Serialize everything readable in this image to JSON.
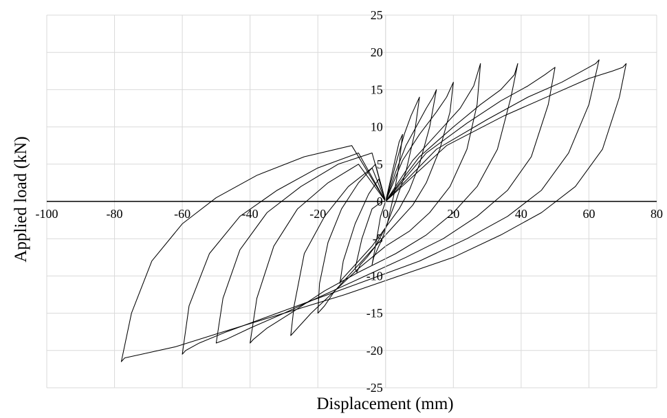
{
  "chart_data": {
    "type": "line",
    "title": "",
    "xlabel": "Displacement (mm)",
    "ylabel": "Applied load (kN)",
    "xlim": [
      -100,
      80
    ],
    "ylim": [
      -25,
      25
    ],
    "x_ticks": [
      -100,
      -80,
      -60,
      -40,
      -20,
      0,
      20,
      40,
      60,
      80
    ],
    "y_ticks": [
      -25,
      -20,
      -15,
      -10,
      -5,
      0,
      5,
      10,
      15,
      20,
      25
    ],
    "x_tick_labels": [
      "-100",
      "-80",
      "-60",
      "-40",
      "-20",
      "0",
      "20",
      "40",
      "60",
      "80"
    ],
    "y_tick_labels": [
      "-25",
      "-20",
      "-15",
      "-10",
      "-5",
      "0",
      "5",
      "10",
      "15",
      "20",
      "25"
    ],
    "grid": true,
    "line_color": "#000000",
    "grid_color": "#d9d9d9",
    "series": [
      {
        "x": [
          0,
          1.5,
          3,
          4,
          5,
          4,
          2.5,
          0.5,
          -1,
          -2.5,
          -3.5,
          -4,
          -3,
          -1.5,
          0
        ],
        "y": [
          0,
          3,
          6,
          8,
          9,
          5,
          1,
          -3,
          -5,
          -6.5,
          -7.5,
          -8.5,
          -6,
          -2,
          0
        ]
      },
      {
        "x": [
          0,
          3,
          5.5,
          7.5,
          9,
          10,
          8.5,
          6,
          3,
          0,
          -3,
          -5.5,
          -7.5,
          -8.5,
          -9,
          -7,
          -4,
          -1,
          0
        ],
        "y": [
          0,
          5,
          9,
          11.5,
          13,
          14,
          9,
          4,
          0,
          -3.5,
          -6,
          -7.5,
          -8.5,
          -9.5,
          -9,
          -5,
          -1,
          0,
          0
        ]
      },
      {
        "x": [
          0,
          3,
          6,
          9,
          12,
          14,
          15,
          13,
          10,
          7,
          4,
          0,
          -4,
          -8,
          -11,
          -13,
          -13.5,
          -12.5,
          -9,
          -5,
          -2,
          0
        ],
        "y": [
          0,
          4,
          7.5,
          10,
          12.5,
          14,
          15,
          10,
          5,
          1.5,
          -1,
          -3.5,
          -6,
          -8,
          -9.5,
          -10.5,
          -11,
          -8,
          -3,
          1,
          3,
          0
        ]
      },
      {
        "x": [
          0,
          5,
          10,
          15,
          18,
          20,
          19,
          16,
          12,
          8,
          4,
          0,
          -5,
          -10,
          -15,
          -18,
          -20,
          -19.5,
          -17,
          -13,
          -8,
          -3,
          0
        ],
        "y": [
          0,
          5.5,
          9,
          12,
          14,
          16,
          12,
          7,
          2.5,
          -0.5,
          -2.5,
          -4.5,
          -7,
          -9.5,
          -12,
          -14,
          -15,
          -11,
          -5.5,
          -1,
          2.5,
          5,
          0
        ]
      },
      {
        "x": [
          0,
          8,
          15,
          22,
          26,
          28,
          27,
          24,
          19,
          13,
          7,
          0,
          -8,
          -15,
          -22,
          -26,
          -28,
          -27,
          -24,
          -18,
          -11,
          -4,
          0
        ],
        "y": [
          0,
          5.5,
          9,
          12.5,
          15.5,
          18.5,
          13,
          7,
          2,
          -1.5,
          -4,
          -6,
          -9,
          -12,
          -15,
          -17,
          -18,
          -14,
          -7,
          -2,
          2,
          4.5,
          0
        ]
      },
      {
        "x": [
          0,
          10,
          20,
          28,
          34,
          38,
          39,
          37,
          33,
          27,
          20,
          12,
          3,
          -8,
          -18,
          -28,
          -35,
          -39,
          -40,
          -38,
          -33,
          -26,
          -17,
          -8,
          0
        ],
        "y": [
          0,
          6,
          10,
          13,
          15,
          17,
          18.5,
          14,
          7,
          2,
          -1.5,
          -4.5,
          -7,
          -9.5,
          -12,
          -15,
          -17,
          -18.5,
          -19,
          -13,
          -6,
          -1,
          2.5,
          5,
          0
        ]
      },
      {
        "x": [
          0,
          12,
          24,
          34,
          42,
          47,
          50,
          48,
          43,
          36,
          27,
          17,
          6,
          -6,
          -18,
          -30,
          -40,
          -47,
          -50,
          -48,
          -43,
          -35,
          -25,
          -14,
          -4,
          0
        ],
        "y": [
          0,
          6.5,
          10.5,
          13.5,
          15.5,
          17,
          18,
          13,
          6,
          1.5,
          -2,
          -5,
          -7.5,
          -10,
          -12.5,
          -15,
          -17,
          -18.5,
          -19,
          -13,
          -6.5,
          -1.5,
          2,
          5,
          6.5,
          0
        ]
      },
      {
        "x": [
          0,
          15,
          30,
          42,
          52,
          58,
          62,
          63,
          60,
          54,
          46,
          36,
          24,
          10,
          -5,
          -20,
          -35,
          -47,
          -55,
          -59,
          -60,
          -58,
          -52,
          -43,
          -32,
          -20,
          -8,
          0
        ],
        "y": [
          0,
          7,
          11,
          14,
          16,
          17.5,
          18.5,
          19,
          13,
          6.5,
          1.5,
          -2,
          -5,
          -8,
          -10.5,
          -13,
          -15.5,
          -17.5,
          -19,
          -20,
          -20.5,
          -14,
          -7,
          -2,
          1.5,
          4.5,
          6.5,
          0
        ]
      },
      {
        "x": [
          0,
          18,
          35,
          50,
          60,
          67,
          70,
          71,
          69,
          64,
          56,
          46,
          34,
          20,
          4,
          -12,
          -30,
          -48,
          -62,
          -72,
          -77,
          -78,
          -75,
          -69,
          -60,
          -50,
          -38,
          -24,
          -10,
          0
        ],
        "y": [
          0,
          7.5,
          11.5,
          14.5,
          16.5,
          17.5,
          18,
          18.5,
          14,
          7,
          2,
          -1.5,
          -4.5,
          -7.5,
          -10,
          -12.5,
          -15,
          -17.5,
          -19.5,
          -20.5,
          -21,
          -21.5,
          -15,
          -8,
          -3,
          0.5,
          3.5,
          6,
          7.5,
          0
        ]
      }
    ]
  }
}
